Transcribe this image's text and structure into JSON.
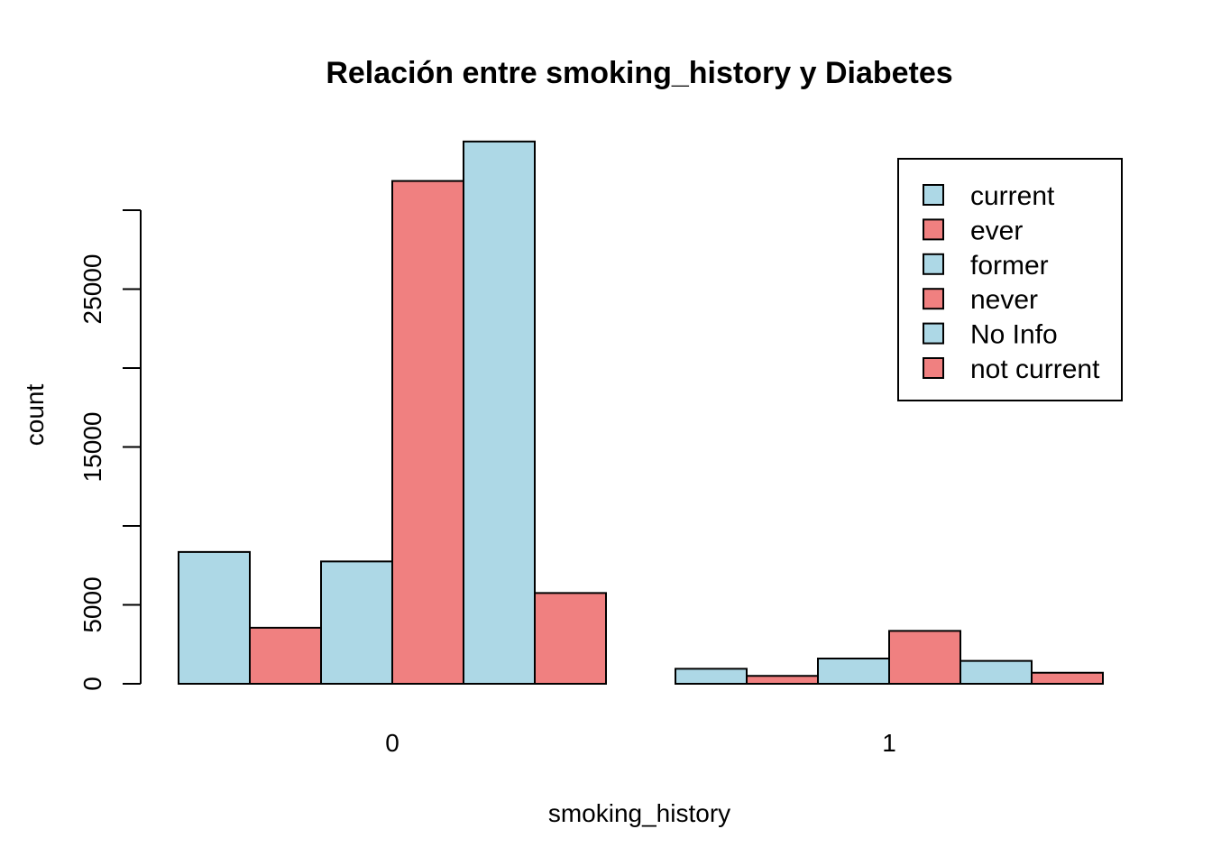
{
  "chart_data": {
    "type": "bar",
    "title": "Relación entre smoking_history y Diabetes",
    "xlabel": "smoking_history",
    "ylabel": "count",
    "groups": [
      "0",
      "1"
    ],
    "series": [
      {
        "name": "current",
        "color": "#ADD8E6",
        "values": [
          8350,
          950
        ]
      },
      {
        "name": "ever",
        "color": "#F08080",
        "values": [
          3550,
          500
        ]
      },
      {
        "name": "former",
        "color": "#ADD8E6",
        "values": [
          7750,
          1600
        ]
      },
      {
        "name": "never",
        "color": "#F08080",
        "values": [
          31850,
          3350
        ]
      },
      {
        "name": "No Info",
        "color": "#ADD8E6",
        "values": [
          34350,
          1450
        ]
      },
      {
        "name": "not current",
        "color": "#F08080",
        "values": [
          5750,
          700
        ]
      }
    ],
    "yticks": [
      0,
      5000,
      15000,
      25000
    ],
    "yminor": [
      10000,
      20000,
      30000
    ],
    "ylim": [
      0,
      34350
    ],
    "grid": false,
    "legend_position": "top-right"
  }
}
